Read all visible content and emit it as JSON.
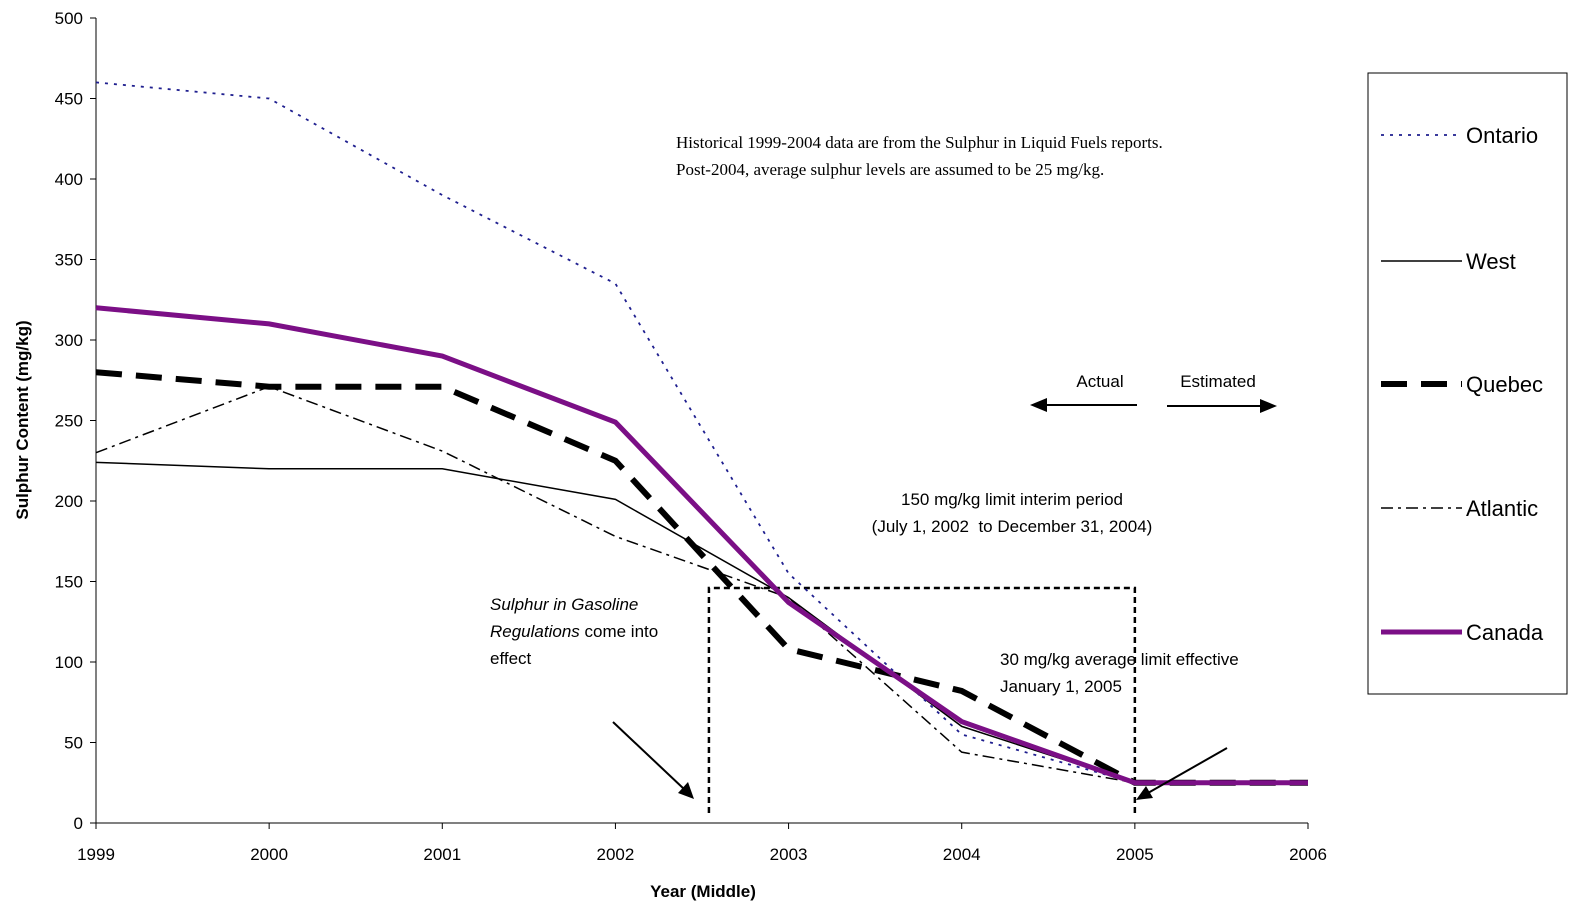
{
  "chart_data": {
    "type": "line",
    "title": "",
    "xlabel": "Year (Middle)",
    "ylabel": "Sulphur Content (mg/kg)",
    "x": [
      1999,
      2000,
      2001,
      2002,
      2003,
      2004,
      2005,
      2006
    ],
    "x_tick_labels": [
      "1999",
      "2000",
      "2001",
      "2002",
      "2003",
      "2004",
      "2005",
      "2006"
    ],
    "xlim": [
      1999,
      2006
    ],
    "ylim": [
      0,
      500
    ],
    "y_ticks": [
      0,
      50,
      100,
      150,
      200,
      250,
      300,
      350,
      400,
      450,
      500
    ],
    "y_tick_labels": [
      "0",
      "50",
      "100",
      "150",
      "200",
      "250",
      "300",
      "350",
      "400",
      "450",
      "500"
    ],
    "grid": false,
    "legend_placement": "right",
    "series": [
      {
        "name": "Ontario",
        "style": "dotted",
        "color": "#1f1f8f",
        "values": [
          460,
          450,
          390,
          335,
          155,
          55,
          25,
          25
        ]
      },
      {
        "name": "West",
        "style": "solid-thin",
        "color": "#000000",
        "values": [
          224,
          220,
          220,
          201,
          140,
          60,
          25,
          25
        ]
      },
      {
        "name": "Quebec",
        "style": "dashed-thick",
        "color": "#000000",
        "values": [
          280,
          271,
          271,
          225,
          108,
          82,
          25,
          25
        ]
      },
      {
        "name": "Atlantic",
        "style": "dashdot",
        "color": "#000000",
        "values": [
          230,
          271,
          231,
          178,
          140,
          44,
          25,
          25
        ]
      },
      {
        "name": "Canada",
        "style": "solid-thick",
        "color": "#7b0f86",
        "values": [
          320,
          310,
          290,
          249,
          137,
          63,
          25,
          25
        ]
      }
    ],
    "interim_period": {
      "x_start": 2002.54,
      "x_end": 2005,
      "level": 146
    },
    "annotations": {
      "source_note_line1": "Historical 1999-2004 data are from the Sulphur in Liquid Fuels reports.",
      "source_note_line2": "Post-2004, average sulphur levels are assumed to be 25 mg/kg.",
      "actual": "Actual",
      "estimated": "Estimated",
      "interim_line1": "150 mg/kg limit interim period",
      "interim_line2": "(July 1, 2002  to December 31, 2004)",
      "regs_italic_1": "Sulphur in Gasoline",
      "regs_italic_2": "Regulations",
      "regs_rest_2": " come into",
      "regs_line3": "effect",
      "limit_line1": "30 mg/kg average limit effective",
      "limit_line2": "January 1, 2005"
    }
  }
}
